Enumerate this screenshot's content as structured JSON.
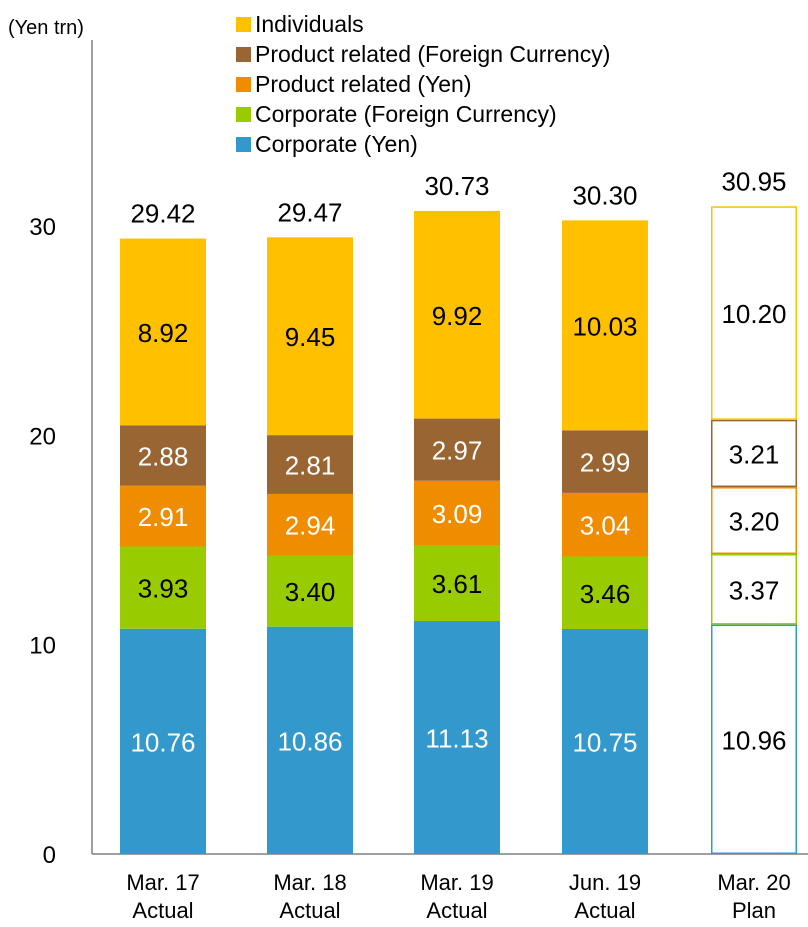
{
  "chart_data": {
    "type": "bar",
    "stacked": true,
    "unit_label": "(Yen trn)",
    "ylim": [
      0,
      30
    ],
    "yticks": [
      0,
      10,
      20,
      30
    ],
    "categories": [
      [
        "Mar. 17",
        "Actual"
      ],
      [
        "Mar. 18",
        "Actual"
      ],
      [
        "Mar. 19",
        "Actual"
      ],
      [
        "Jun. 19",
        "Actual"
      ],
      [
        "Mar. 20",
        "Plan"
      ]
    ],
    "plan_category_index": 4,
    "series": [
      {
        "name": "Corporate (Yen)",
        "color": "#3399CC",
        "label_color": "#ffffff",
        "values": [
          10.76,
          10.86,
          11.13,
          10.75,
          10.96
        ]
      },
      {
        "name": "Corporate (Foreign Currency)",
        "color": "#99CC00",
        "label_color": "#000000",
        "values": [
          3.93,
          3.4,
          3.61,
          3.46,
          3.37
        ]
      },
      {
        "name": "Product related (Yen)",
        "color": "#F08C00",
        "label_color": "#ffffff",
        "values": [
          2.91,
          2.94,
          3.09,
          3.04,
          3.2
        ]
      },
      {
        "name": "Product related (Foreign Currency)",
        "color": "#996633",
        "label_color": "#ffffff",
        "values": [
          2.88,
          2.81,
          2.97,
          2.99,
          3.21
        ]
      },
      {
        "name": "Individuals",
        "color": "#FFC000",
        "label_color": "#000000",
        "values": [
          8.92,
          9.45,
          9.92,
          10.03,
          10.2
        ]
      }
    ],
    "totals": [
      29.42,
      29.47,
      30.73,
      30.3,
      30.95
    ],
    "legend_order": [
      4,
      3,
      2,
      1,
      0
    ],
    "legend": "top"
  }
}
